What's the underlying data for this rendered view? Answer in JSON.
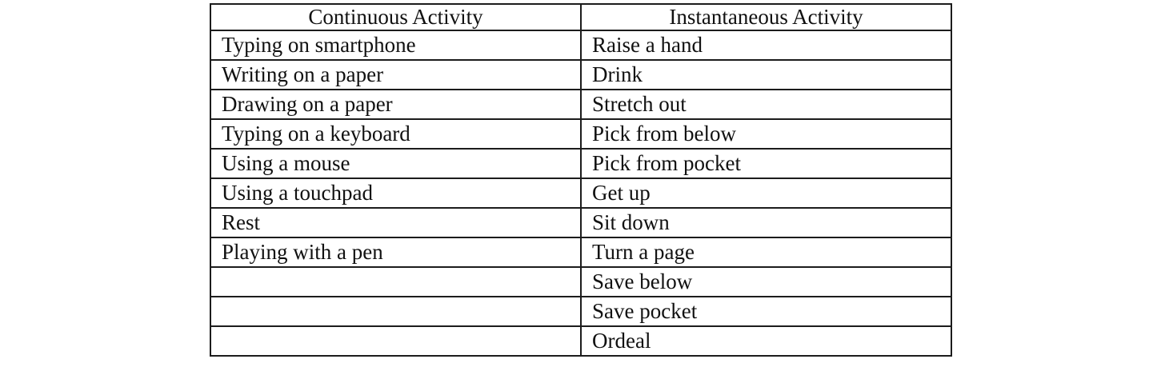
{
  "table": {
    "columns": [
      "Continuous Activity",
      "Instantaneous Activity"
    ],
    "rows": [
      {
        "continuous": "Typing on smartphone",
        "instantaneous": "Raise a hand"
      },
      {
        "continuous": "Writing on a paper",
        "instantaneous": "Drink"
      },
      {
        "continuous": "Drawing on a paper",
        "instantaneous": "Stretch out"
      },
      {
        "continuous": "Typing on a keyboard",
        "instantaneous": "Pick from below"
      },
      {
        "continuous": "Using a mouse",
        "instantaneous": "Pick from pocket"
      },
      {
        "continuous": "Using a touchpad",
        "instantaneous": "Get up"
      },
      {
        "continuous": "Rest",
        "instantaneous": "Sit down"
      },
      {
        "continuous": "Playing with a pen",
        "instantaneous": "Turn a page"
      },
      {
        "continuous": "",
        "instantaneous": "Save below"
      },
      {
        "continuous": "",
        "instantaneous": "Save pocket"
      },
      {
        "continuous": "",
        "instantaneous": "Ordeal"
      }
    ],
    "colors": {
      "border": "#1c1c1c",
      "text": "#111111",
      "background": "#ffffff"
    }
  }
}
